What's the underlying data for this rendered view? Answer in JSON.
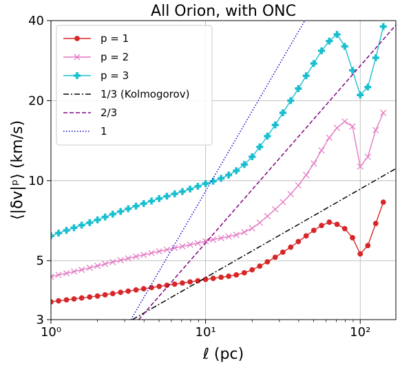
{
  "chart_data": {
    "type": "line",
    "title": "All Orion, with ONC",
    "xlabel": "ℓ (pc)",
    "ylabel": "⟨|δv|ᵖ⟩ (km/s)",
    "xscale": "log",
    "yscale": "log",
    "xlim": [
      1,
      170
    ],
    "ylim": [
      3,
      40
    ],
    "grid": true,
    "legend_position": "top-left",
    "x_ticks": [
      {
        "value": 1,
        "label": "10⁰"
      },
      {
        "value": 10,
        "label": "10¹"
      },
      {
        "value": 100,
        "label": "10²"
      }
    ],
    "y_ticks": [
      {
        "value": 3,
        "label": "3"
      },
      {
        "value": 5,
        "label": "5"
      },
      {
        "value": 10,
        "label": "10"
      },
      {
        "value": 20,
        "label": "20"
      },
      {
        "value": 40,
        "label": "40"
      }
    ],
    "series": [
      {
        "name": "p = 1",
        "color": "#d62728",
        "marker": "circle",
        "x": [
          1.0,
          1.12,
          1.26,
          1.41,
          1.58,
          1.78,
          2.0,
          2.24,
          2.51,
          2.82,
          3.16,
          3.55,
          3.98,
          4.47,
          5.01,
          5.62,
          6.31,
          7.08,
          7.94,
          8.91,
          10.0,
          11.2,
          12.6,
          14.1,
          15.8,
          17.8,
          20.0,
          22.4,
          25.1,
          28.2,
          31.6,
          35.5,
          39.8,
          44.7,
          50.1,
          56.2,
          63.1,
          70.8,
          79.4,
          89.1,
          100,
          112,
          126,
          141
        ],
        "values": [
          3.5,
          3.53,
          3.56,
          3.59,
          3.62,
          3.65,
          3.68,
          3.72,
          3.76,
          3.8,
          3.84,
          3.88,
          3.92,
          3.96,
          4.0,
          4.04,
          4.08,
          4.12,
          4.16,
          4.2,
          4.25,
          4.29,
          4.33,
          4.37,
          4.42,
          4.5,
          4.62,
          4.77,
          4.95,
          5.15,
          5.38,
          5.62,
          5.9,
          6.2,
          6.5,
          6.78,
          6.98,
          6.85,
          6.6,
          6.1,
          5.3,
          5.7,
          6.9,
          8.3
        ]
      },
      {
        "name": "p = 2",
        "color": "#e377c2",
        "marker": "x",
        "x": [
          1.0,
          1.12,
          1.26,
          1.41,
          1.58,
          1.78,
          2.0,
          2.24,
          2.51,
          2.82,
          3.16,
          3.55,
          3.98,
          4.47,
          5.01,
          5.62,
          6.31,
          7.08,
          7.94,
          8.91,
          10.0,
          11.2,
          12.6,
          14.1,
          15.8,
          17.8,
          20.0,
          22.4,
          25.1,
          28.2,
          31.6,
          35.5,
          39.8,
          44.7,
          50.1,
          56.2,
          63.1,
          70.8,
          79.4,
          89.1,
          100,
          112,
          126,
          141
        ],
        "values": [
          4.35,
          4.42,
          4.48,
          4.55,
          4.62,
          4.7,
          4.78,
          4.86,
          4.94,
          5.02,
          5.1,
          5.18,
          5.26,
          5.34,
          5.42,
          5.5,
          5.58,
          5.66,
          5.74,
          5.82,
          5.92,
          6.0,
          6.08,
          6.16,
          6.25,
          6.4,
          6.62,
          6.95,
          7.35,
          7.8,
          8.3,
          8.9,
          9.6,
          10.5,
          11.6,
          13.0,
          14.5,
          15.8,
          16.7,
          16.0,
          11.3,
          12.3,
          15.5,
          18.0
        ]
      },
      {
        "name": "p = 3",
        "color": "#17becf",
        "marker": "plus",
        "x": [
          1.0,
          1.12,
          1.26,
          1.41,
          1.58,
          1.78,
          2.0,
          2.24,
          2.51,
          2.82,
          3.16,
          3.55,
          3.98,
          4.47,
          5.01,
          5.62,
          6.31,
          7.08,
          7.94,
          8.91,
          10.0,
          11.2,
          12.6,
          14.1,
          15.8,
          17.8,
          20.0,
          22.4,
          25.1,
          28.2,
          31.6,
          35.5,
          39.8,
          44.7,
          50.1,
          56.2,
          63.1,
          70.8,
          79.4,
          89.1,
          100,
          112,
          126,
          141
        ],
        "values": [
          6.2,
          6.35,
          6.5,
          6.65,
          6.8,
          6.95,
          7.12,
          7.3,
          7.48,
          7.66,
          7.84,
          8.02,
          8.2,
          8.38,
          8.56,
          8.74,
          8.92,
          9.1,
          9.3,
          9.52,
          9.75,
          9.95,
          10.2,
          10.5,
          10.9,
          11.5,
          12.3,
          13.4,
          14.7,
          16.2,
          18.0,
          20.0,
          22.2,
          24.8,
          27.6,
          30.8,
          33.5,
          35.5,
          32.0,
          26.0,
          21.0,
          22.5,
          29.0,
          38.0
        ]
      },
      {
        "name": "1/3 (Kolmogorov)",
        "color": "#000000",
        "style": "dashdot",
        "x": [
          3.36,
          170
        ],
        "values": [
          3.0,
          11.1
        ]
      },
      {
        "name": "2/3",
        "color": "#800080",
        "style": "dashed",
        "x": [
          3.69,
          170
        ],
        "values": [
          3.0,
          38.5
        ]
      },
      {
        "name": "1",
        "color": "#0000cc",
        "style": "dotted",
        "x": [
          3.29,
          43.8
        ],
        "values": [
          3.0,
          40.0
        ]
      }
    ]
  }
}
